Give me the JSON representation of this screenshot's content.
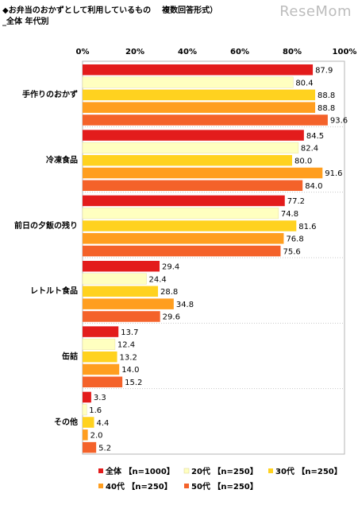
{
  "title": "◆お弁当のおかずとして利用しているもの",
  "subtitle_note": "複数回答形式）",
  "subtitle": "_全体 年代別",
  "watermark": "ReseMom",
  "chart_data": {
    "type": "bar",
    "orientation": "horizontal",
    "categories": [
      "手作りのおかず",
      "冷凍食品",
      "前日の夕飯の残り",
      "レトルト食品",
      "缶詰",
      "その他"
    ],
    "xlim": [
      0,
      100
    ],
    "xticks": [
      "0%",
      "20%",
      "40%",
      "60%",
      "80%",
      "100%"
    ],
    "grid": false,
    "legend_position": "bottom",
    "series": [
      {
        "name": "全体 【n=1000】",
        "color": "#e31c1c",
        "values": [
          87.9,
          84.5,
          77.2,
          29.4,
          13.7,
          3.3
        ]
      },
      {
        "name": "20代 【n=250】",
        "color": "#ffffc0",
        "values": [
          80.4,
          82.4,
          74.8,
          24.4,
          12.4,
          1.6
        ]
      },
      {
        "name": "30代 【n=250】",
        "color": "#ffd21f",
        "values": [
          88.8,
          80.0,
          81.6,
          28.8,
          13.2,
          4.4
        ]
      },
      {
        "name": "40代 【n=250】",
        "color": "#ff9e1f",
        "values": [
          88.8,
          91.6,
          76.8,
          34.8,
          14.0,
          2.0
        ]
      },
      {
        "name": "50代 【n=250】",
        "color": "#f4622a",
        "values": [
          93.6,
          84.0,
          75.6,
          29.6,
          15.2,
          5.2
        ]
      }
    ]
  }
}
